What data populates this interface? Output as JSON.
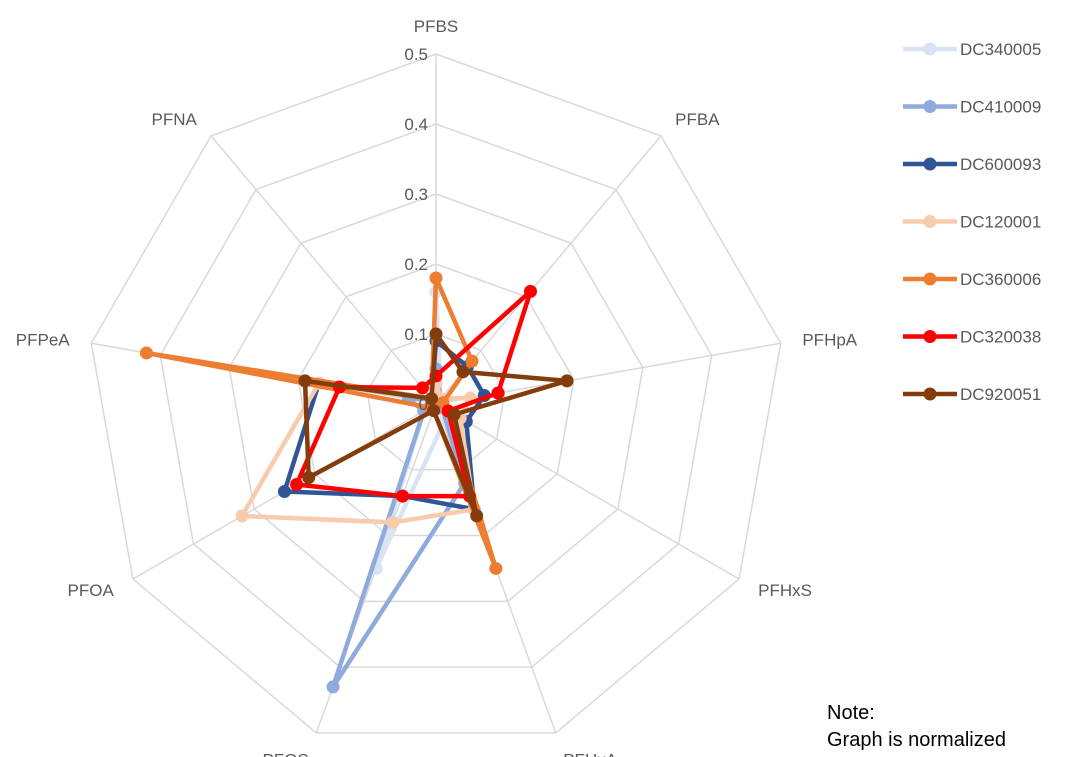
{
  "chart_data": {
    "type": "radar",
    "axes": [
      "PFBS",
      "PFBA",
      "PFHpA",
      "PFHxS",
      "PFHxA",
      "PFOS",
      "PFOA",
      "PFPeA",
      "PFNA"
    ],
    "rmin": 0,
    "rmax": 0.5,
    "ticks": [
      "0",
      "0.1",
      "0.2",
      "0.3",
      "0.4",
      "0.5"
    ],
    "grid": true,
    "legend_position": "right",
    "series": [
      {
        "name": "DC340005",
        "color": "#dae3f3",
        "values": [
          0.16,
          0.01,
          0.01,
          0.02,
          0.03,
          0.25,
          0.02,
          0.04,
          0.01
        ]
      },
      {
        "name": "DC410009",
        "color": "#8faadc",
        "values": [
          0.05,
          0.01,
          0.01,
          0.01,
          0.12,
          0.43,
          0.02,
          0.04,
          0.01
        ]
      },
      {
        "name": "DC600093",
        "color": "#2f5597",
        "values": [
          0.09,
          0.07,
          0.07,
          0.05,
          0.16,
          0.14,
          0.25,
          0.17,
          0.01
        ]
      },
      {
        "name": "DC120001",
        "color": "#f8cbad",
        "values": [
          0.03,
          0.01,
          0.05,
          0.04,
          0.16,
          0.18,
          0.32,
          0.17,
          0.01
        ]
      },
      {
        "name": "DC360006",
        "color": "#ed7d31",
        "values": [
          0.18,
          0.08,
          0.01,
          0.02,
          0.25,
          0.01,
          0.01,
          0.42,
          0.01
        ]
      },
      {
        "name": "DC320038",
        "color": "#ff0000",
        "values": [
          0.04,
          0.21,
          0.09,
          0.02,
          0.14,
          0.14,
          0.23,
          0.14,
          0.03
        ]
      },
      {
        "name": "DC920051",
        "color": "#843c0c",
        "values": [
          0.1,
          0.06,
          0.19,
          0.03,
          0.17,
          0.01,
          0.21,
          0.19,
          0.01
        ]
      }
    ]
  },
  "note": {
    "line1": "Note:",
    "line2": "Graph is normalized"
  }
}
